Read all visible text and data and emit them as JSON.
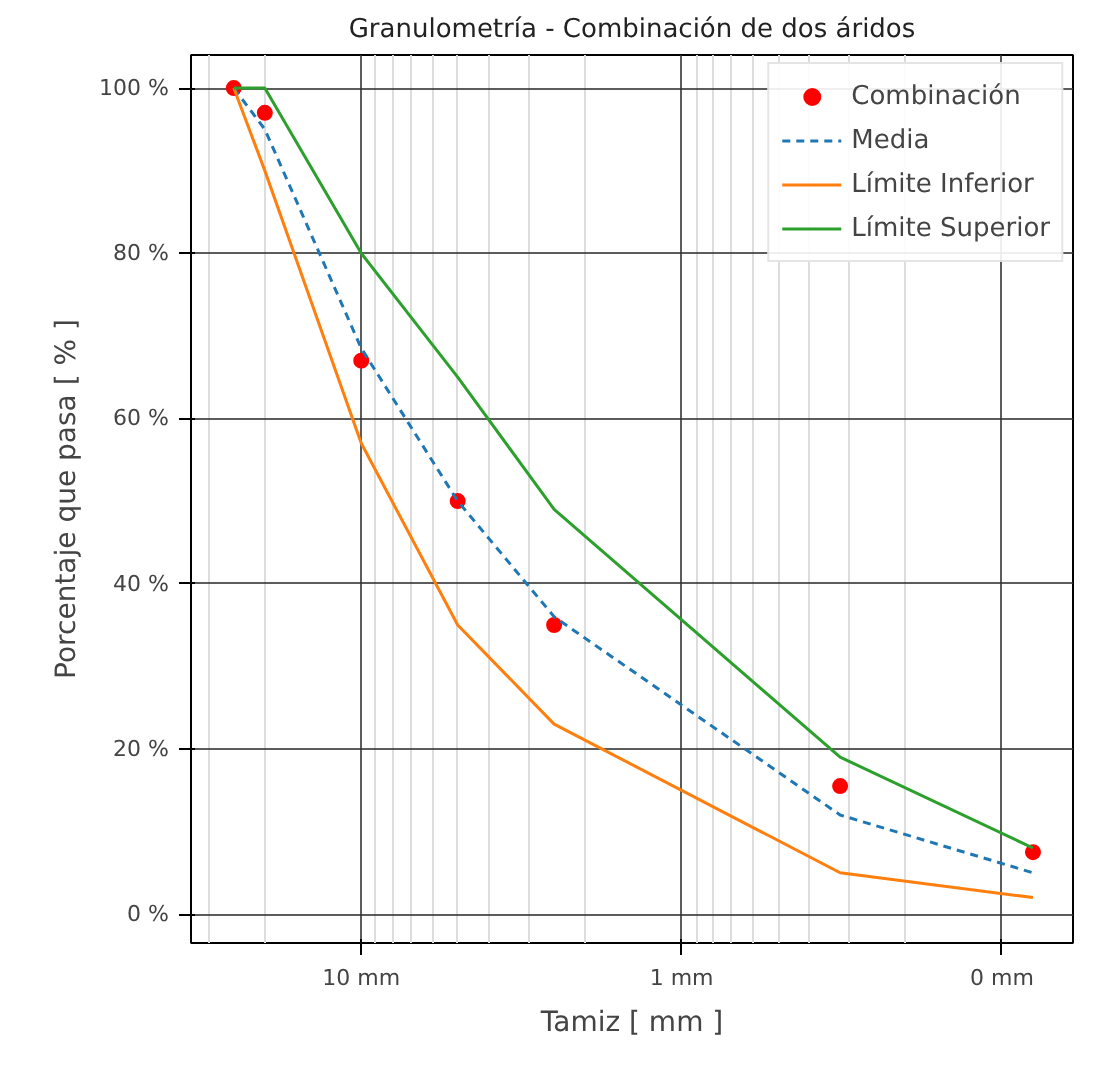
{
  "chart_data": {
    "type": "line",
    "title": "Granulometría - Combinación de dos áridos",
    "xlabel": "Tamiz [ mm ]",
    "ylabel": "Porcentaje que pasa [ % ]",
    "log": "x",
    "x": [
      25,
      20,
      10,
      5,
      2.5,
      0.32,
      0.08
    ],
    "xlim": [
      34,
      0.06
    ],
    "xticks": [
      {
        "value": 10,
        "label": "10 mm"
      },
      {
        "value": 1,
        "label": "1 mm"
      },
      {
        "value": 0.1,
        "label": "0 mm"
      }
    ],
    "ylim": [
      -3.5,
      104
    ],
    "yticks": [
      {
        "value": 0,
        "label": "0 %"
      },
      {
        "value": 20,
        "label": "20 %"
      },
      {
        "value": 40,
        "label": "40 %"
      },
      {
        "value": 60,
        "label": "60 %"
      },
      {
        "value": 80,
        "label": "80 %"
      },
      {
        "value": 100,
        "label": "100 %"
      }
    ],
    "grid": true,
    "legend": "top right",
    "series": [
      {
        "name": "Combinación",
        "type": "scatter",
        "marker": "circle",
        "color": "#ff0000",
        "values": [
          100,
          97,
          67,
          50,
          35,
          15.5,
          7.5
        ]
      },
      {
        "name": "Media",
        "line_style": "dashed",
        "color": "#1f77b4",
        "values": [
          100,
          95,
          68.5,
          50,
          36,
          12,
          5
        ]
      },
      {
        "name": "Límite Inferior",
        "line_style": "solid",
        "color": "#ff7f0e",
        "values": [
          100,
          90,
          57,
          35,
          23,
          5,
          2
        ]
      },
      {
        "name": "Límite Superior",
        "line_style": "solid",
        "color": "#2ca02c",
        "values": [
          100,
          100,
          80,
          65,
          49,
          19,
          8
        ]
      }
    ]
  }
}
